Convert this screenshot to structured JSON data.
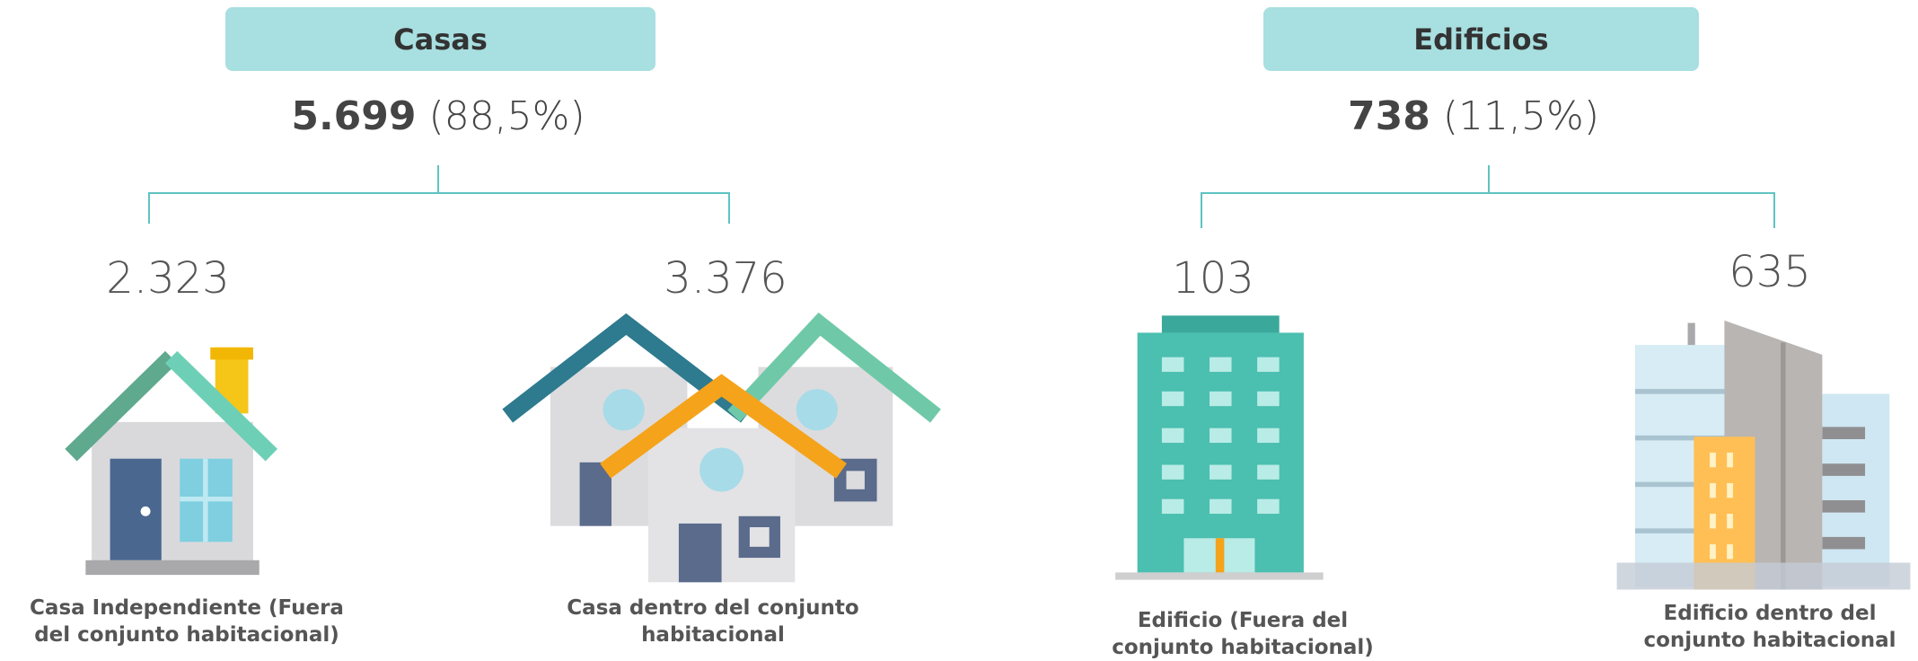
{
  "groups": [
    {
      "title": "Casas",
      "total": "5.699",
      "share": "(88,5%)",
      "items": [
        {
          "value": "2.323",
          "label": "Casa Independiente (Fuera del conjunto habitacional)"
        },
        {
          "value": "3.376",
          "label": "Casa dentro del conjunto habitacional"
        }
      ]
    },
    {
      "title": "Edificios",
      "total": "738",
      "share": "(11,5%)",
      "items": [
        {
          "value": "103",
          "label": "Edificio (Fuera del conjunto habitacional)"
        },
        {
          "value": "635",
          "label": "Edificio dentro del conjunto habitacional"
        }
      ]
    }
  ]
}
